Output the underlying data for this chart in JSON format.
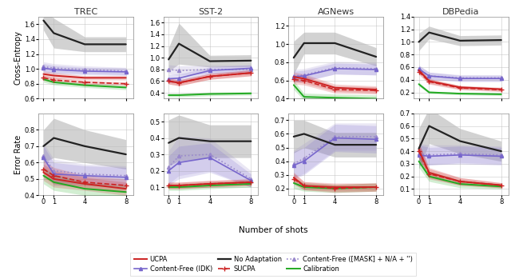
{
  "shots": [
    0,
    1,
    4,
    8
  ],
  "datasets": [
    "TREC",
    "SST-2",
    "AGNews",
    "DBPedia"
  ],
  "ce": {
    "TREC": {
      "no_adapt": {
        "mean": [
          1.65,
          1.48,
          1.33,
          1.33
        ],
        "std": [
          0.13,
          0.2,
          0.1,
          0.1
        ]
      },
      "ucpa": {
        "mean": [
          0.93,
          0.91,
          0.88,
          0.88
        ],
        "std": [
          0.04,
          0.04,
          0.03,
          0.03
        ]
      },
      "sucpa": {
        "mean": [
          0.88,
          0.85,
          0.82,
          0.8
        ],
        "std": [
          0.035,
          0.035,
          0.025,
          0.025
        ]
      },
      "cf_idk": {
        "mean": [
          1.01,
          0.99,
          0.97,
          0.96
        ],
        "std": [
          0.06,
          0.055,
          0.05,
          0.05
        ]
      },
      "cf_mask": {
        "mean": [
          1.03,
          1.01,
          0.99,
          0.97
        ],
        "std": [
          0.065,
          0.06,
          0.05,
          0.05
        ]
      },
      "calib": {
        "mean": [
          0.86,
          0.82,
          0.78,
          0.75
        ],
        "std": [
          0.04,
          0.035,
          0.03,
          0.03
        ]
      }
    },
    "SST-2": {
      "no_adapt": {
        "mean": [
          0.97,
          1.24,
          0.94,
          0.95
        ],
        "std": [
          0.2,
          0.35,
          0.1,
          0.1
        ]
      },
      "ucpa": {
        "mean": [
          0.6,
          0.57,
          0.68,
          0.74
        ],
        "std": [
          0.05,
          0.05,
          0.05,
          0.05
        ]
      },
      "sucpa": {
        "mean": [
          0.6,
          0.57,
          0.68,
          0.74
        ],
        "std": [
          0.05,
          0.05,
          0.05,
          0.05
        ]
      },
      "cf_idk": {
        "mean": [
          0.64,
          0.65,
          0.78,
          0.82
        ],
        "std": [
          0.07,
          0.07,
          0.06,
          0.06
        ]
      },
      "cf_mask": {
        "mean": [
          0.8,
          0.78,
          0.8,
          0.8
        ],
        "std": [
          0.08,
          0.08,
          0.07,
          0.07
        ]
      },
      "calib": {
        "mean": [
          0.36,
          0.36,
          0.38,
          0.39
        ],
        "std": [
          0.03,
          0.03,
          0.03,
          0.03
        ]
      }
    },
    "AGNews": {
      "no_adapt": {
        "mean": [
          0.85,
          1.01,
          1.01,
          0.86
        ],
        "std": [
          0.18,
          0.12,
          0.12,
          0.1
        ]
      },
      "ucpa": {
        "mean": [
          0.64,
          0.62,
          0.52,
          0.5
        ],
        "std": [
          0.05,
          0.05,
          0.04,
          0.04
        ]
      },
      "sucpa": {
        "mean": [
          0.61,
          0.6,
          0.5,
          0.49
        ],
        "std": [
          0.05,
          0.05,
          0.04,
          0.04
        ]
      },
      "cf_idk": {
        "mean": [
          0.64,
          0.65,
          0.73,
          0.72
        ],
        "std": [
          0.06,
          0.06,
          0.06,
          0.06
        ]
      },
      "cf_mask": {
        "mean": [
          0.65,
          0.66,
          0.74,
          0.73
        ],
        "std": [
          0.07,
          0.07,
          0.07,
          0.07
        ]
      },
      "calib": {
        "mean": [
          0.55,
          0.42,
          0.41,
          0.4
        ],
        "std": [
          0.05,
          0.04,
          0.04,
          0.04
        ]
      }
    },
    "DBPedia": {
      "no_adapt": {
        "mean": [
          1.0,
          1.15,
          1.02,
          1.03
        ],
        "std": [
          0.14,
          0.1,
          0.08,
          0.08
        ]
      },
      "ucpa": {
        "mean": [
          0.55,
          0.38,
          0.28,
          0.25
        ],
        "std": [
          0.05,
          0.04,
          0.03,
          0.03
        ]
      },
      "sucpa": {
        "mean": [
          0.53,
          0.37,
          0.27,
          0.24
        ],
        "std": [
          0.05,
          0.04,
          0.03,
          0.03
        ]
      },
      "cf_idk": {
        "mean": [
          0.57,
          0.46,
          0.42,
          0.42
        ],
        "std": [
          0.06,
          0.06,
          0.05,
          0.05
        ]
      },
      "cf_mask": {
        "mean": [
          0.57,
          0.46,
          0.43,
          0.43
        ],
        "std": [
          0.06,
          0.06,
          0.05,
          0.05
        ]
      },
      "calib": {
        "mean": [
          0.33,
          0.2,
          0.18,
          0.17
        ],
        "std": [
          0.03,
          0.02,
          0.02,
          0.02
        ]
      }
    }
  },
  "err": {
    "TREC": {
      "no_adapt": {
        "mean": [
          0.7,
          0.75,
          0.7,
          0.65
        ],
        "std": [
          0.1,
          0.12,
          0.1,
          0.09
        ]
      },
      "ucpa": {
        "mean": [
          0.54,
          0.5,
          0.47,
          0.44
        ],
        "std": [
          0.05,
          0.05,
          0.04,
          0.04
        ]
      },
      "sucpa": {
        "mean": [
          0.56,
          0.52,
          0.48,
          0.46
        ],
        "std": [
          0.05,
          0.05,
          0.04,
          0.04
        ]
      },
      "cf_idk": {
        "mean": [
          0.63,
          0.53,
          0.52,
          0.51
        ],
        "std": [
          0.07,
          0.07,
          0.06,
          0.06
        ]
      },
      "cf_mask": {
        "mean": [
          0.64,
          0.55,
          0.53,
          0.52
        ],
        "std": [
          0.08,
          0.07,
          0.06,
          0.06
        ]
      },
      "calib": {
        "mean": [
          0.52,
          0.48,
          0.44,
          0.42
        ],
        "std": [
          0.05,
          0.05,
          0.04,
          0.04
        ]
      }
    },
    "SST-2": {
      "no_adapt": {
        "mean": [
          0.37,
          0.4,
          0.38,
          0.38
        ],
        "std": [
          0.14,
          0.14,
          0.1,
          0.1
        ]
      },
      "ucpa": {
        "mean": [
          0.11,
          0.11,
          0.12,
          0.13
        ],
        "std": [
          0.02,
          0.02,
          0.02,
          0.02
        ]
      },
      "sucpa": {
        "mean": [
          0.11,
          0.11,
          0.12,
          0.13
        ],
        "std": [
          0.02,
          0.02,
          0.02,
          0.02
        ]
      },
      "cf_idk": {
        "mean": [
          0.2,
          0.25,
          0.28,
          0.14
        ],
        "std": [
          0.09,
          0.1,
          0.09,
          0.04
        ]
      },
      "cf_mask": {
        "mean": [
          0.22,
          0.29,
          0.3,
          0.15
        ],
        "std": [
          0.1,
          0.12,
          0.1,
          0.05
        ]
      },
      "calib": {
        "mean": [
          0.1,
          0.1,
          0.11,
          0.12
        ],
        "std": [
          0.02,
          0.02,
          0.02,
          0.02
        ]
      }
    },
    "AGNews": {
      "no_adapt": {
        "mean": [
          0.58,
          0.6,
          0.52,
          0.52
        ],
        "std": [
          0.12,
          0.1,
          0.09,
          0.09
        ]
      },
      "ucpa": {
        "mean": [
          0.28,
          0.22,
          0.21,
          0.21
        ],
        "std": [
          0.04,
          0.03,
          0.03,
          0.03
        ]
      },
      "sucpa": {
        "mean": [
          0.27,
          0.22,
          0.2,
          0.21
        ],
        "std": [
          0.04,
          0.03,
          0.03,
          0.03
        ]
      },
      "cf_idk": {
        "mean": [
          0.37,
          0.4,
          0.57,
          0.56
        ],
        "std": [
          0.1,
          0.1,
          0.1,
          0.1
        ]
      },
      "cf_mask": {
        "mean": [
          0.38,
          0.42,
          0.58,
          0.58
        ],
        "std": [
          0.1,
          0.11,
          0.1,
          0.1
        ]
      },
      "calib": {
        "mean": [
          0.24,
          0.21,
          0.2,
          0.21
        ],
        "std": [
          0.04,
          0.03,
          0.03,
          0.03
        ]
      }
    },
    "DBPedia": {
      "no_adapt": {
        "mean": [
          0.42,
          0.6,
          0.48,
          0.4
        ],
        "std": [
          0.16,
          0.14,
          0.1,
          0.08
        ]
      },
      "ucpa": {
        "mean": [
          0.41,
          0.23,
          0.16,
          0.13
        ],
        "std": [
          0.06,
          0.04,
          0.03,
          0.02
        ]
      },
      "sucpa": {
        "mean": [
          0.4,
          0.22,
          0.16,
          0.13
        ],
        "std": [
          0.06,
          0.04,
          0.03,
          0.02
        ]
      },
      "cf_idk": {
        "mean": [
          0.37,
          0.36,
          0.37,
          0.36
        ],
        "std": [
          0.08,
          0.07,
          0.07,
          0.07
        ]
      },
      "cf_mask": {
        "mean": [
          0.38,
          0.37,
          0.38,
          0.37
        ],
        "std": [
          0.08,
          0.08,
          0.07,
          0.07
        ]
      },
      "calib": {
        "mean": [
          0.32,
          0.2,
          0.14,
          0.12
        ],
        "std": [
          0.05,
          0.04,
          0.03,
          0.02
        ]
      }
    }
  },
  "ce_ylims": {
    "TREC": [
      0.6,
      1.7
    ],
    "SST-2": [
      0.3,
      1.7
    ],
    "AGNews": [
      0.4,
      1.3
    ],
    "DBPedia": [
      0.1,
      1.4
    ]
  },
  "err_ylims": {
    "TREC": [
      0.4,
      0.9
    ],
    "SST-2": [
      0.05,
      0.55
    ],
    "AGNews": [
      0.15,
      0.75
    ],
    "DBPedia": [
      0.05,
      0.7
    ]
  },
  "ce_yticks": {
    "TREC": [
      0.6,
      0.8,
      1.0,
      1.2,
      1.4,
      1.6
    ],
    "SST-2": [
      0.4,
      0.6,
      0.8,
      1.0,
      1.2,
      1.4,
      1.6
    ],
    "AGNews": [
      0.4,
      0.6,
      0.8,
      1.0,
      1.2
    ],
    "DBPedia": [
      0.2,
      0.4,
      0.6,
      0.8,
      1.0,
      1.2,
      1.4
    ]
  },
  "err_yticks": {
    "TREC": [
      0.4,
      0.5,
      0.6,
      0.7,
      0.8
    ],
    "SST-2": [
      0.1,
      0.2,
      0.3,
      0.4,
      0.5
    ],
    "AGNews": [
      0.2,
      0.3,
      0.4,
      0.5,
      0.6,
      0.7
    ],
    "DBPedia": [
      0.1,
      0.2,
      0.3,
      0.4,
      0.5,
      0.6,
      0.7
    ]
  },
  "colors": {
    "no_adapt": "#222222",
    "ucpa": "#cc2222",
    "sucpa": "#cc2222",
    "cf_idk": "#7766cc",
    "cf_mask": "#9988cc",
    "calib": "#22aa22"
  },
  "alpha_fill": 0.2
}
